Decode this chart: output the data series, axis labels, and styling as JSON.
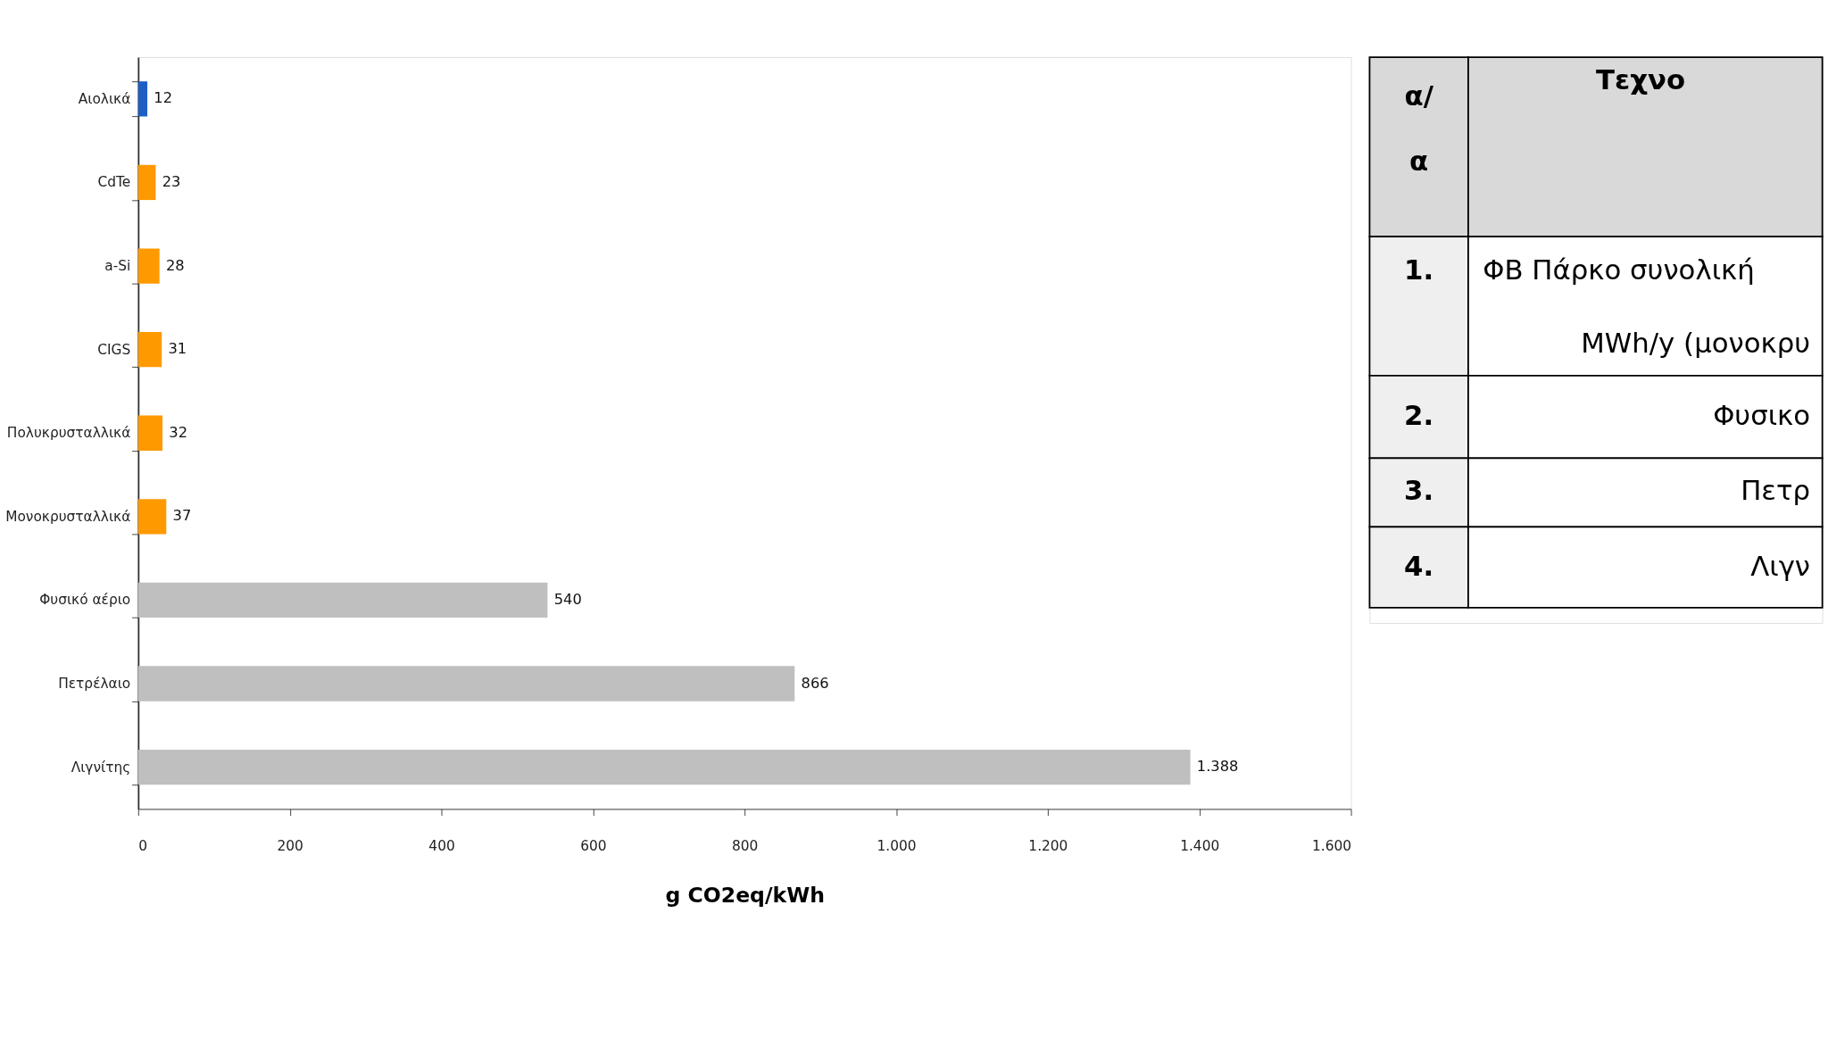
{
  "chart_data": [
    {
      "type": "bar",
      "orientation": "horizontal",
      "categories": [
        "Αιολικά",
        "CdTe",
        "a-Si",
        "CIGS",
        "Πολυκρυσταλλικά",
        "Μονοκρυσταλλικά",
        "Φυσικό αέριο",
        "Πετρέλαιο",
        "Λιγνίτης"
      ],
      "values": [
        12,
        23,
        28,
        31,
        32,
        37,
        540,
        866,
        1388
      ],
      "colors": [
        "#1f5fc4",
        "#ff9900",
        "#ff9900",
        "#ff9900",
        "#ff9900",
        "#ff9900",
        "#bfbfbf",
        "#bfbfbf",
        "#bfbfbf"
      ],
      "value_labels": [
        "12",
        "23",
        "28",
        "31",
        "32",
        "37",
        "540",
        "866",
        "1.388"
      ],
      "xlabel": "g CO2eq/kWh",
      "xlim": [
        0,
        1600
      ],
      "xticks": [
        0,
        200,
        400,
        600,
        800,
        {
          "value": 1000,
          "label": "1.000"
        },
        {
          "value": 1200,
          "label": "1.200"
        },
        {
          "value": 1400,
          "label": "1.400"
        },
        {
          "value": 1600,
          "label": "1.600"
        }
      ],
      "grid": false
    },
    {
      "type": "other",
      "annotations": [
        "α/ α",
        "Τεχνο",
        "1.",
        "ΦΒ Πάρκο συνολική",
        "MWh/y (μονοκρυ",
        "2.",
        "Φυσικο",
        "3.",
        "Πετρ",
        "4.",
        "Λιγν"
      ]
    }
  ]
}
